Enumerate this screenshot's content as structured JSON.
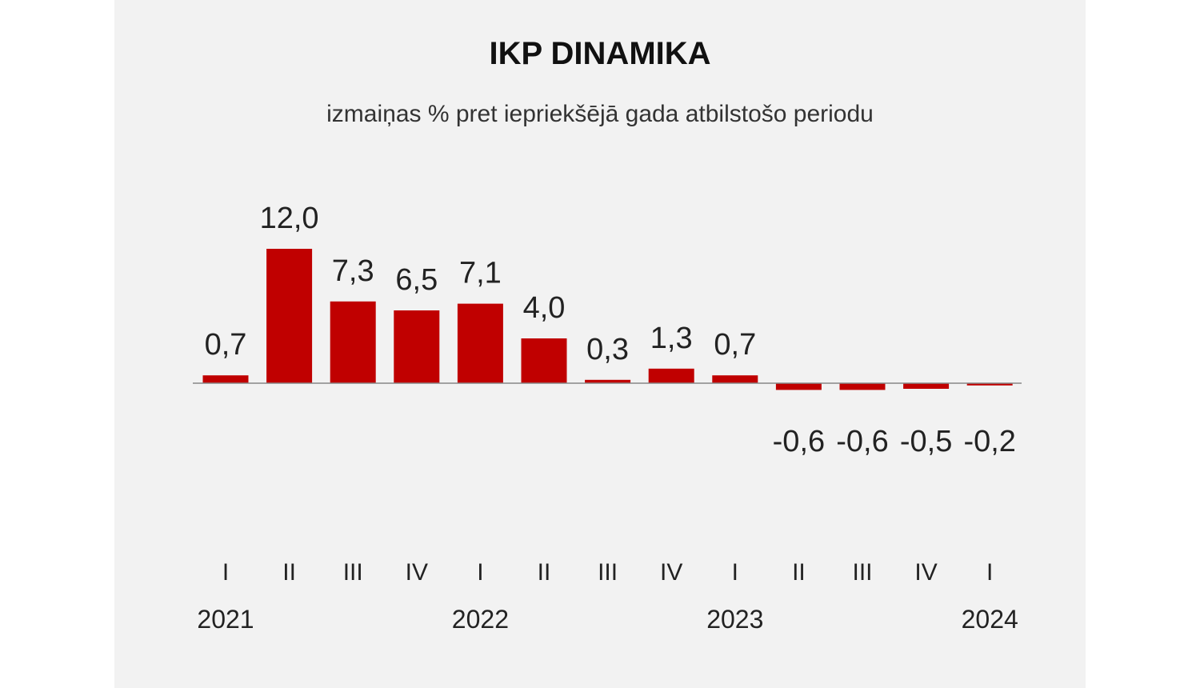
{
  "chart_data": {
    "type": "bar",
    "title": "IKP DINAMIKA",
    "subtitle": "izmaiņas % pret iepriekšējā gada atbilstošo periodu",
    "categories": [
      "I",
      "II",
      "III",
      "IV",
      "I",
      "II",
      "III",
      "IV",
      "I",
      "II",
      "III",
      "IV",
      "I"
    ],
    "values": [
      0.7,
      12.0,
      7.3,
      6.5,
      7.1,
      4.0,
      0.3,
      1.3,
      0.7,
      -0.6,
      -0.6,
      -0.5,
      -0.2
    ],
    "value_labels": [
      "0,7",
      "12,0",
      "7,3",
      "6,5",
      "7,1",
      "4,0",
      "0,3",
      "1,3",
      "0,7",
      "-0,6",
      "-0,6",
      "-0,5",
      "-0,2"
    ],
    "years": [
      {
        "label": "2021",
        "category_index": 0
      },
      {
        "label": "2022",
        "category_index": 4
      },
      {
        "label": "2023",
        "category_index": 8
      },
      {
        "label": "2024",
        "category_index": 12
      }
    ],
    "xlabel": "",
    "ylabel": "",
    "grid": false,
    "bar_color": "#c00000",
    "axis_color": "#888888"
  }
}
